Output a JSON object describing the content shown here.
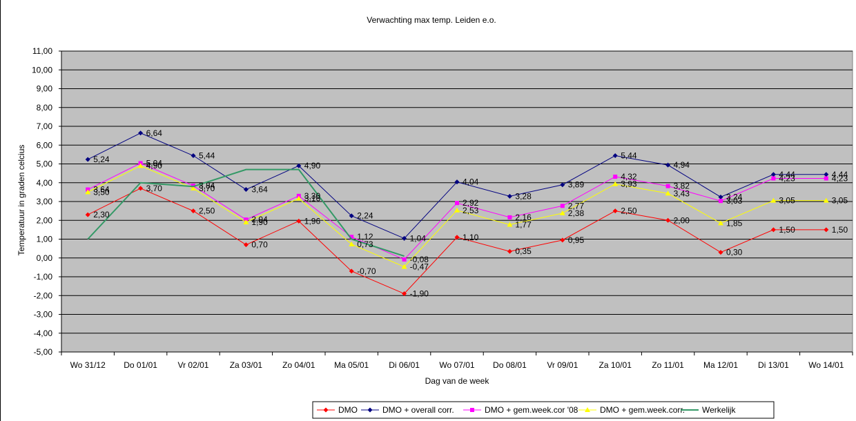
{
  "chart_data": {
    "type": "line",
    "title": "Verwachting max temp. Leiden e.o.",
    "xlabel": "Dag van de week",
    "ylabel": "Temperatuur in graden celcius",
    "ylim": [
      -5,
      11
    ],
    "ytick_step": 1,
    "grid": true,
    "plot_background": "#c0c0c0",
    "legend_position": "bottom",
    "categories": [
      "Wo 31/12",
      "Do 01/01",
      "Vr 02/01",
      "Za 03/01",
      "Zo 04/01",
      "Ma 05/01",
      "Di 06/01",
      "Wo 07/01",
      "Do 08/01",
      "Vr 09/01",
      "Za 10/01",
      "Zo 11/01",
      "Ma 12/01",
      "Di 13/01",
      "Wo 14/01"
    ],
    "series": [
      {
        "name": "DMO",
        "color": "#ff0000",
        "marker": "diamond",
        "labels": true,
        "values": [
          2.3,
          3.7,
          2.5,
          0.7,
          1.96,
          -0.7,
          -1.9,
          1.1,
          0.35,
          0.95,
          2.5,
          2.0,
          0.3,
          1.5,
          1.5
        ]
      },
      {
        "name": "DMO + overall corr.",
        "color": "#000080",
        "marker": "diamond",
        "labels": true,
        "values": [
          5.24,
          6.64,
          5.44,
          3.64,
          4.9,
          2.24,
          1.04,
          4.04,
          3.28,
          3.89,
          5.44,
          4.94,
          3.24,
          4.44,
          4.44
        ]
      },
      {
        "name": "DMO + gem.week.cor '08",
        "color": "#ff00ff",
        "marker": "square",
        "labels": true,
        "values": [
          3.64,
          5.04,
          3.84,
          2.04,
          3.3,
          1.12,
          -0.08,
          2.92,
          2.16,
          2.77,
          4.32,
          3.82,
          3.03,
          4.23,
          4.23
        ]
      },
      {
        "name": "DMO + gem.week.corr.",
        "color": "#ffff00",
        "marker": "triangle",
        "labels": true,
        "values": [
          3.5,
          4.9,
          3.7,
          1.9,
          3.16,
          0.73,
          -0.47,
          2.53,
          1.77,
          2.38,
          3.93,
          3.43,
          1.85,
          3.05,
          3.05
        ]
      },
      {
        "name": "Werkelijk",
        "color": "#339966",
        "marker": "none",
        "labels": false,
        "values": [
          1.0,
          4.0,
          3.8,
          4.7,
          4.7,
          1.0,
          0.1,
          null,
          null,
          null,
          null,
          null,
          null,
          null,
          null
        ]
      }
    ],
    "point_labels": [
      [
        "2,30",
        "3,70",
        "2,50",
        "0,70",
        "1,96",
        "-0,70",
        "-1,90",
        "1,10",
        "0,35",
        "0,95",
        "2,50",
        "2,00",
        "0,30",
        "1,50",
        "1,50"
      ],
      [
        "5,24",
        "6,64",
        "5,44",
        "3,64",
        "4,90",
        "2,24",
        "1,04",
        "4,04",
        "3,28",
        "3,89",
        "5,44",
        "4,94",
        "3,24",
        "4,44",
        "4,44"
      ],
      [
        "3,64",
        "5,04",
        "3,84",
        "2,04",
        "3,30",
        "1,12",
        "-0,08",
        "2,92",
        "2,16",
        "2,77",
        "4,32",
        "3,82",
        "3,03",
        "4,23",
        "4,23"
      ],
      [
        "3,50",
        "4,90",
        "3,70",
        "1,90",
        "3,16",
        "0,73",
        "-0,47",
        "2,53",
        "1,77",
        "2,38",
        "3,93",
        "3,43",
        "1,85",
        "3,05",
        "3,05"
      ]
    ],
    "y_tick_labels": [
      "-5,00",
      "-4,00",
      "-3,00",
      "-2,00",
      "-1,00",
      "0,00",
      "1,00",
      "2,00",
      "3,00",
      "4,00",
      "5,00",
      "6,00",
      "7,00",
      "8,00",
      "9,00",
      "10,00",
      "11,00"
    ]
  }
}
